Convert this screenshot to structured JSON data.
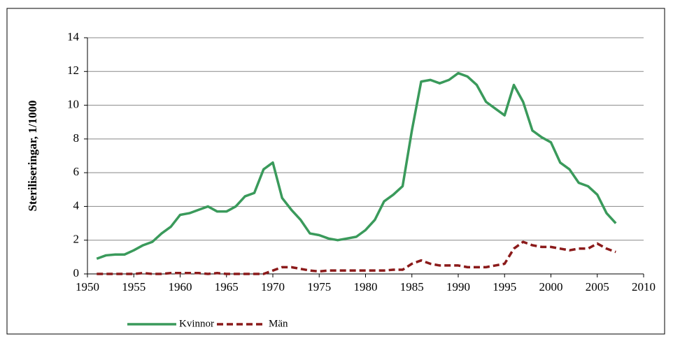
{
  "chart_data": {
    "type": "line",
    "y_label": "Steriliseringar, 1/1000",
    "x": [
      1951,
      1952,
      1953,
      1954,
      1955,
      1956,
      1957,
      1958,
      1959,
      1960,
      1961,
      1962,
      1963,
      1964,
      1965,
      1966,
      1967,
      1968,
      1969,
      1970,
      1971,
      1972,
      1973,
      1974,
      1975,
      1976,
      1977,
      1978,
      1979,
      1980,
      1981,
      1982,
      1983,
      1984,
      1985,
      1986,
      1987,
      1988,
      1989,
      1990,
      1991,
      1992,
      1993,
      1994,
      1995,
      1996,
      1997,
      1998,
      1999,
      2000,
      2001,
      2002,
      2003,
      2004,
      2005,
      2006,
      2007
    ],
    "series": [
      {
        "name": "Kvinnor",
        "color": "#3a9a5b",
        "dash": false,
        "values": [
          0.9,
          1.1,
          1.15,
          1.15,
          1.4,
          1.7,
          1.9,
          2.4,
          2.8,
          3.5,
          3.6,
          3.8,
          4.0,
          3.7,
          3.7,
          4.0,
          4.6,
          4.8,
          6.2,
          6.6,
          4.5,
          3.8,
          3.2,
          2.4,
          2.3,
          2.1,
          2.0,
          2.1,
          2.2,
          2.6,
          3.2,
          4.3,
          4.7,
          5.2,
          8.5,
          11.4,
          11.5,
          11.3,
          11.5,
          11.9,
          11.7,
          11.2,
          10.2,
          9.8,
          9.4,
          11.2,
          10.2,
          8.5,
          8.1,
          7.8,
          6.6,
          6.2,
          5.4,
          5.2,
          4.7,
          3.6,
          3.0
        ]
      },
      {
        "name": "Män",
        "color": "#8b1a1a",
        "dash": true,
        "values": [
          0,
          0,
          0,
          0,
          0,
          0.05,
          0,
          0,
          0.05,
          0.05,
          0.05,
          0.05,
          0,
          0.05,
          0,
          0,
          0,
          0,
          0,
          0.2,
          0.4,
          0.4,
          0.3,
          0.2,
          0.15,
          0.2,
          0.2,
          0.2,
          0.2,
          0.2,
          0.2,
          0.2,
          0.25,
          0.25,
          0.6,
          0.8,
          0.6,
          0.5,
          0.5,
          0.5,
          0.4,
          0.4,
          0.4,
          0.5,
          0.6,
          1.5,
          1.9,
          1.7,
          1.6,
          1.6,
          1.5,
          1.4,
          1.5,
          1.5,
          1.8,
          1.5,
          1.3
        ]
      }
    ],
    "xlim": [
      1950,
      2010
    ],
    "xticks": [
      1950,
      1955,
      1960,
      1965,
      1970,
      1975,
      1980,
      1985,
      1990,
      1995,
      2000,
      2005,
      2010
    ],
    "ylim": [
      0,
      14
    ],
    "yticks": [
      0,
      2,
      4,
      6,
      8,
      10,
      12,
      14
    ],
    "grid": true,
    "legend": "bottom-left"
  }
}
